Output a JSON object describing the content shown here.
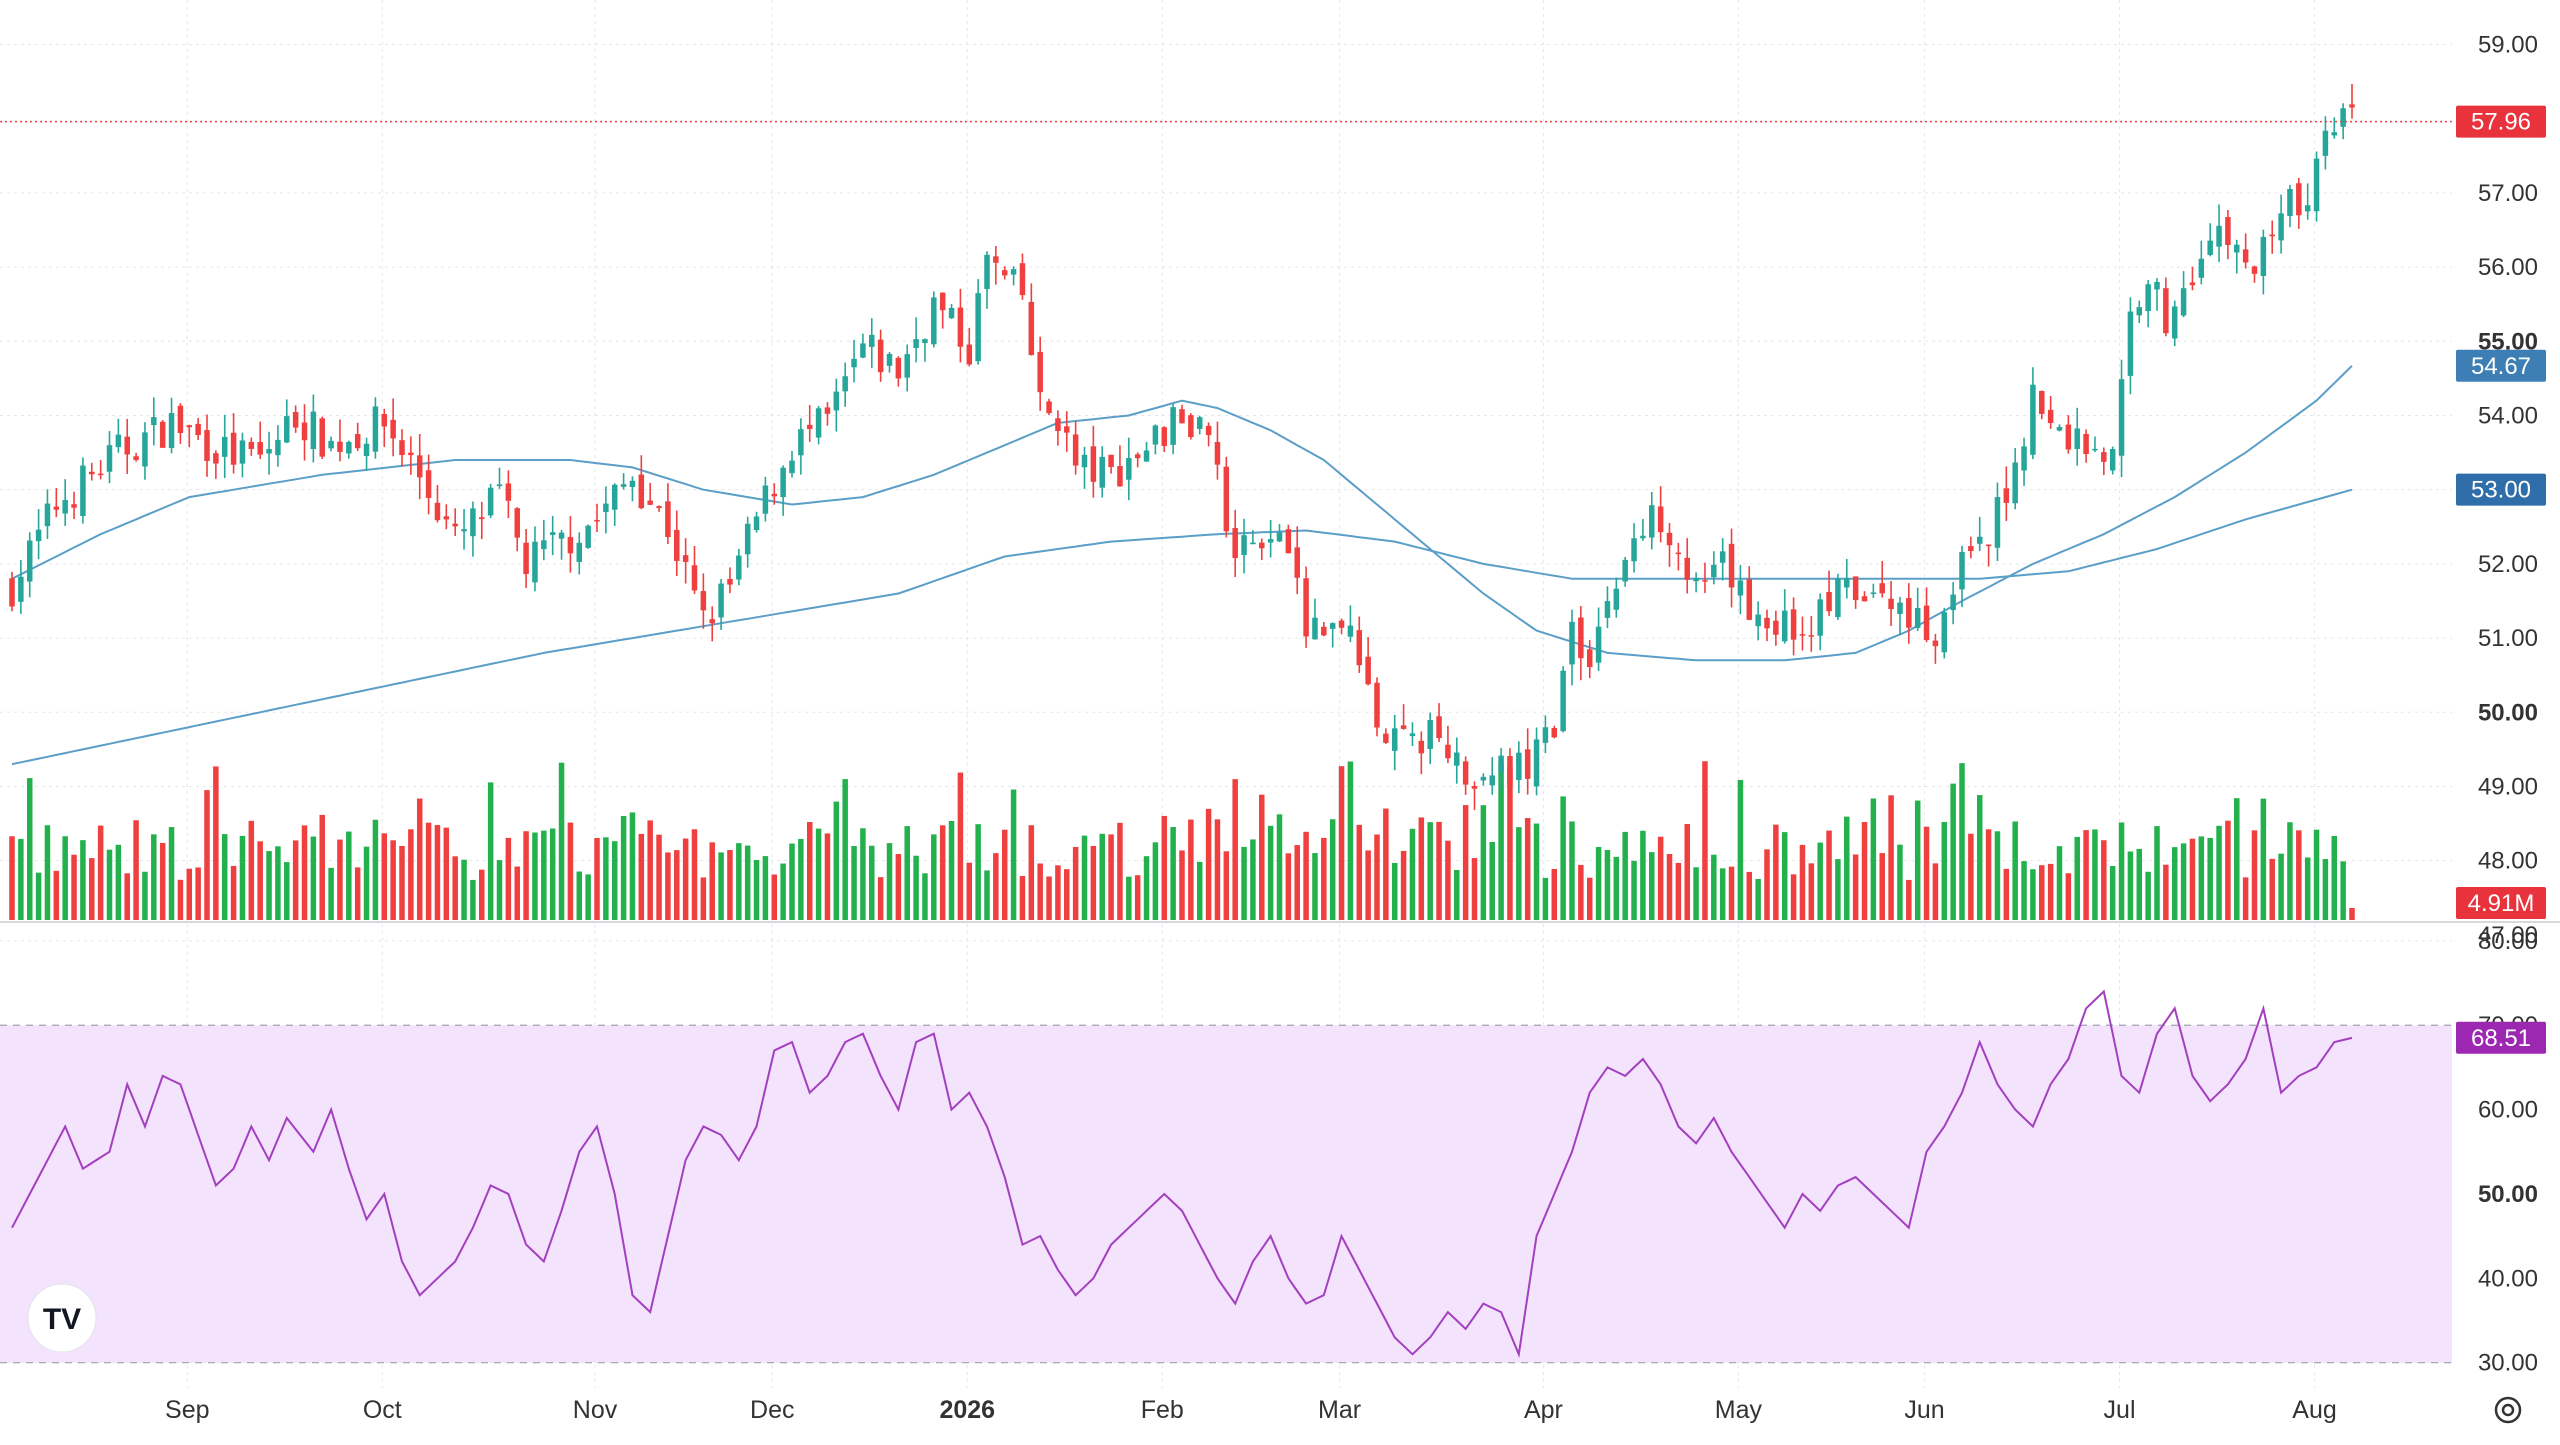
{
  "colors": {
    "up": "#26a69a",
    "up_bar": "#22b14c",
    "down": "#ef3f3f",
    "ma_fast": "#5b9ec7",
    "ma_slow": "#5b9ec7",
    "rsi_line": "#a43fbf",
    "rsi_fill": "#f3e3fd",
    "last_price_bg": "#e8323c",
    "ma_fast_bg": "#3d7fb4",
    "ma_slow_bg": "#2f6ea8",
    "rsi_label_bg": "#9c27b0",
    "grid": "#e3e6ec",
    "axis_text": "#333333"
  },
  "price_axis": {
    "ticks": [
      "59.00",
      "57.00",
      "56.00",
      "55.00",
      "54.00",
      "53.00",
      "52.00",
      "51.00",
      "50.00",
      "49.00",
      "48.00"
    ],
    "bold_ticks": [
      "55.00",
      "50.00"
    ],
    "range": [
      47.2,
      59.6
    ],
    "last_price_label": "57.96",
    "ma_fast_label": "54.67",
    "ma_slow_label": "53.00",
    "volume_label": "4.91M",
    "hidden_tick": "47.00"
  },
  "rsi_axis": {
    "ticks": [
      "80.00",
      "60.00",
      "50.00",
      "40.00",
      "30.00"
    ],
    "bold_ticks": [
      "50.00"
    ],
    "upper_band": 70,
    "lower_band": 30,
    "range": [
      27,
      82
    ],
    "value_label": "68.51",
    "hidden_tick": "70.00"
  },
  "time_axis": {
    "labels": [
      {
        "text": "Sep",
        "bold": false,
        "index": 20
      },
      {
        "text": "Oct",
        "bold": false,
        "index": 42
      },
      {
        "text": "Nov",
        "bold": false,
        "index": 66
      },
      {
        "text": "Dec",
        "bold": false,
        "index": 86
      },
      {
        "text": "2026",
        "bold": true,
        "index": 108
      },
      {
        "text": "Feb",
        "bold": false,
        "index": 130
      },
      {
        "text": "Mar",
        "bold": false,
        "index": 150
      },
      {
        "text": "Apr",
        "bold": false,
        "index": 173
      },
      {
        "text": "May",
        "bold": false,
        "index": 195
      },
      {
        "text": "Jun",
        "bold": false,
        "index": 216
      },
      {
        "text": "Jul",
        "bold": false,
        "index": 238
      },
      {
        "text": "Aug",
        "bold": false,
        "index": 260
      }
    ]
  },
  "logo_text": "TV",
  "chart_data": {
    "type": "candlestick",
    "price_keypoints": [
      [
        0,
        51.7
      ],
      [
        5,
        52.8
      ],
      [
        12,
        53.5
      ],
      [
        18,
        53.9
      ],
      [
        24,
        53.5
      ],
      [
        28,
        53.4
      ],
      [
        32,
        54.0
      ],
      [
        36,
        53.6
      ],
      [
        42,
        53.9
      ],
      [
        46,
        53.2
      ],
      [
        50,
        52.3
      ],
      [
        55,
        52.9
      ],
      [
        58,
        52.0
      ],
      [
        62,
        52.3
      ],
      [
        66,
        52.6
      ],
      [
        70,
        53.2
      ],
      [
        74,
        52.5
      ],
      [
        78,
        51.2
      ],
      [
        81,
        51.7
      ],
      [
        84,
        52.6
      ],
      [
        88,
        53.6
      ],
      [
        92,
        53.9
      ],
      [
        96,
        54.9
      ],
      [
        100,
        54.6
      ],
      [
        104,
        55.5
      ],
      [
        108,
        54.9
      ],
      [
        110,
        56.1
      ],
      [
        112,
        55.8
      ],
      [
        114,
        55.6
      ],
      [
        116,
        54.1
      ],
      [
        118,
        54.0
      ],
      [
        120,
        53.3
      ],
      [
        124,
        53.2
      ],
      [
        128,
        53.6
      ],
      [
        132,
        54.0
      ],
      [
        135,
        53.9
      ],
      [
        138,
        52.0
      ],
      [
        141,
        52.4
      ],
      [
        144,
        52.1
      ],
      [
        146,
        51.1
      ],
      [
        150,
        51.3
      ],
      [
        153,
        50.2
      ],
      [
        156,
        49.6
      ],
      [
        160,
        49.7
      ],
      [
        164,
        49.2
      ],
      [
        168,
        49.3
      ],
      [
        171,
        49.2
      ],
      [
        174,
        49.9
      ],
      [
        176,
        51.0
      ],
      [
        178,
        50.8
      ],
      [
        180,
        51.5
      ],
      [
        183,
        52.3
      ],
      [
        186,
        52.7
      ],
      [
        188,
        52.3
      ],
      [
        190,
        51.6
      ],
      [
        193,
        51.9
      ],
      [
        197,
        51.3
      ],
      [
        202,
        51.1
      ],
      [
        206,
        51.6
      ],
      [
        210,
        51.5
      ],
      [
        214,
        51.4
      ],
      [
        217,
        51.0
      ],
      [
        219,
        51.8
      ],
      [
        223,
        52.3
      ],
      [
        226,
        53.4
      ],
      [
        228,
        54.3
      ],
      [
        230,
        53.8
      ],
      [
        235,
        53.6
      ],
      [
        237,
        53.4
      ],
      [
        239,
        55.3
      ],
      [
        241,
        56.0
      ],
      [
        243,
        55.2
      ],
      [
        247,
        56.3
      ],
      [
        250,
        56.4
      ],
      [
        253,
        55.9
      ],
      [
        256,
        56.9
      ],
      [
        258,
        56.7
      ],
      [
        260,
        57.3
      ],
      [
        262,
        58.0
      ],
      [
        264,
        57.96
      ]
    ],
    "ma_fast_keypoints": [
      [
        0,
        51.8
      ],
      [
        10,
        52.4
      ],
      [
        20,
        52.9
      ],
      [
        35,
        53.2
      ],
      [
        50,
        53.4
      ],
      [
        63,
        53.4
      ],
      [
        70,
        53.3
      ],
      [
        78,
        53.0
      ],
      [
        88,
        52.8
      ],
      [
        96,
        52.9
      ],
      [
        104,
        53.2
      ],
      [
        110,
        53.5
      ],
      [
        118,
        53.9
      ],
      [
        126,
        54.0
      ],
      [
        132,
        54.2
      ],
      [
        136,
        54.1
      ],
      [
        142,
        53.8
      ],
      [
        148,
        53.4
      ],
      [
        154,
        52.8
      ],
      [
        160,
        52.2
      ],
      [
        166,
        51.6
      ],
      [
        172,
        51.1
      ],
      [
        180,
        50.8
      ],
      [
        190,
        50.7
      ],
      [
        200,
        50.7
      ],
      [
        208,
        50.8
      ],
      [
        214,
        51.1
      ],
      [
        220,
        51.5
      ],
      [
        228,
        52.0
      ],
      [
        236,
        52.4
      ],
      [
        244,
        52.9
      ],
      [
        252,
        53.5
      ],
      [
        260,
        54.2
      ],
      [
        264,
        54.67
      ]
    ],
    "ma_slow_keypoints": [
      [
        0,
        49.3
      ],
      [
        20,
        49.8
      ],
      [
        40,
        50.3
      ],
      [
        60,
        50.8
      ],
      [
        80,
        51.2
      ],
      [
        100,
        51.6
      ],
      [
        112,
        52.1
      ],
      [
        124,
        52.3
      ],
      [
        136,
        52.4
      ],
      [
        146,
        52.45
      ],
      [
        156,
        52.3
      ],
      [
        166,
        52.0
      ],
      [
        176,
        51.8
      ],
      [
        190,
        51.8
      ],
      [
        210,
        51.8
      ],
      [
        222,
        51.8
      ],
      [
        232,
        51.9
      ],
      [
        242,
        52.2
      ],
      [
        252,
        52.6
      ],
      [
        264,
        53.0
      ]
    ],
    "rsi_keypoints": [
      [
        0,
        46
      ],
      [
        3,
        52
      ],
      [
        6,
        58
      ],
      [
        8,
        53
      ],
      [
        11,
        55
      ],
      [
        13,
        63
      ],
      [
        15,
        58
      ],
      [
        17,
        64
      ],
      [
        19,
        63
      ],
      [
        21,
        57
      ],
      [
        23,
        51
      ],
      [
        25,
        53
      ],
      [
        27,
        58
      ],
      [
        29,
        54
      ],
      [
        31,
        59
      ],
      [
        34,
        55
      ],
      [
        36,
        60
      ],
      [
        38,
        53
      ],
      [
        40,
        47
      ],
      [
        42,
        50
      ],
      [
        44,
        42
      ],
      [
        46,
        38
      ],
      [
        48,
        40
      ],
      [
        50,
        42
      ],
      [
        52,
        46
      ],
      [
        54,
        51
      ],
      [
        56,
        50
      ],
      [
        58,
        44
      ],
      [
        60,
        42
      ],
      [
        62,
        48
      ],
      [
        64,
        55
      ],
      [
        66,
        58
      ],
      [
        68,
        50
      ],
      [
        70,
        38
      ],
      [
        72,
        36
      ],
      [
        74,
        45
      ],
      [
        76,
        54
      ],
      [
        78,
        58
      ],
      [
        80,
        57
      ],
      [
        82,
        54
      ],
      [
        84,
        58
      ],
      [
        86,
        67
      ],
      [
        88,
        68
      ],
      [
        90,
        62
      ],
      [
        92,
        64
      ],
      [
        94,
        68
      ],
      [
        96,
        69
      ],
      [
        98,
        64
      ],
      [
        100,
        60
      ],
      [
        102,
        68
      ],
      [
        104,
        69
      ],
      [
        106,
        60
      ],
      [
        108,
        62
      ],
      [
        110,
        58
      ],
      [
        112,
        52
      ],
      [
        114,
        44
      ],
      [
        116,
        45
      ],
      [
        118,
        41
      ],
      [
        120,
        38
      ],
      [
        122,
        40
      ],
      [
        124,
        44
      ],
      [
        126,
        46
      ],
      [
        128,
        48
      ],
      [
        130,
        50
      ],
      [
        132,
        48
      ],
      [
        134,
        44
      ],
      [
        136,
        40
      ],
      [
        138,
        37
      ],
      [
        140,
        42
      ],
      [
        142,
        45
      ],
      [
        144,
        40
      ],
      [
        146,
        37
      ],
      [
        148,
        38
      ],
      [
        150,
        45
      ],
      [
        152,
        41
      ],
      [
        154,
        37
      ],
      [
        156,
        33
      ],
      [
        158,
        31
      ],
      [
        160,
        33
      ],
      [
        162,
        36
      ],
      [
        164,
        34
      ],
      [
        166,
        37
      ],
      [
        168,
        36
      ],
      [
        170,
        31
      ],
      [
        172,
        45
      ],
      [
        174,
        50
      ],
      [
        176,
        55
      ],
      [
        178,
        62
      ],
      [
        180,
        65
      ],
      [
        182,
        64
      ],
      [
        184,
        66
      ],
      [
        186,
        63
      ],
      [
        188,
        58
      ],
      [
        190,
        56
      ],
      [
        192,
        59
      ],
      [
        194,
        55
      ],
      [
        196,
        52
      ],
      [
        198,
        49
      ],
      [
        200,
        46
      ],
      [
        202,
        50
      ],
      [
        204,
        48
      ],
      [
        206,
        51
      ],
      [
        208,
        52
      ],
      [
        210,
        50
      ],
      [
        212,
        48
      ],
      [
        214,
        46
      ],
      [
        216,
        55
      ],
      [
        218,
        58
      ],
      [
        220,
        62
      ],
      [
        222,
        68
      ],
      [
        224,
        63
      ],
      [
        226,
        60
      ],
      [
        228,
        58
      ],
      [
        230,
        63
      ],
      [
        232,
        66
      ],
      [
        234,
        72
      ],
      [
        236,
        74
      ],
      [
        238,
        64
      ],
      [
        240,
        62
      ],
      [
        242,
        69
      ],
      [
        244,
        72
      ],
      [
        246,
        64
      ],
      [
        248,
        61
      ],
      [
        250,
        63
      ],
      [
        252,
        66
      ],
      [
        254,
        72
      ],
      [
        256,
        62
      ],
      [
        258,
        64
      ],
      [
        260,
        65
      ],
      [
        262,
        68
      ],
      [
        264,
        68.5
      ]
    ],
    "last_price": 57.96,
    "ma_fast_last": 54.67,
    "ma_slow_last": 53.0,
    "rsi_last": 68.51,
    "last_volume": "4.91M"
  }
}
